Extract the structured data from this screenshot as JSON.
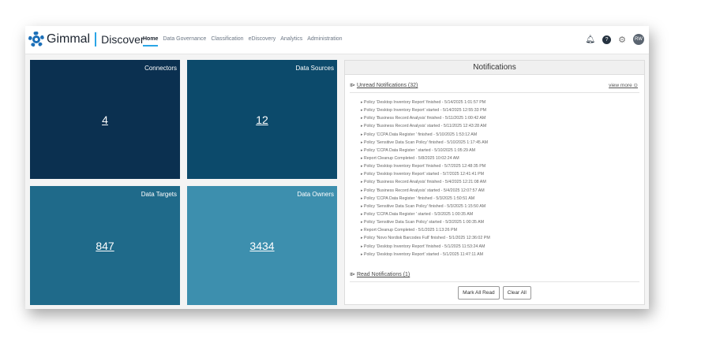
{
  "header": {
    "brand": "Gimmal",
    "product": "Discover",
    "nav": [
      "Home",
      "Data Governance",
      "Classification",
      "eDiscovery",
      "Analytics",
      "Administration"
    ],
    "user_initials": "RW"
  },
  "tiles": [
    {
      "title": "Connectors",
      "value": "4",
      "color": "#0b3050"
    },
    {
      "title": "Data Sources",
      "value": "12",
      "color": "#0c4a6b"
    },
    {
      "title": "Data Targets",
      "value": "847",
      "color": "#1f6a8a"
    },
    {
      "title": "Data Owners",
      "value": "3434",
      "color": "#3d8fae"
    }
  ],
  "notifications": {
    "title": "Notifications",
    "unread_label": "Unread Notifications (32)",
    "view_more": "view more",
    "read_label": "Read Notifications (1)",
    "items": [
      "Policy 'Desktop Inventory Report' finished - 5/14/2025 1:01:57 PM",
      "Policy 'Desktop Inventory Report' started - 5/14/2025 12:55:33 PM",
      "Policy 'Business Record Analysis' finished - 5/11/2025 1:00:42 AM",
      "Policy 'Business Record Analysis' started - 5/11/2025 12:43:28 AM",
      "Policy 'CCPA Data Register ' finished - 5/10/2025 1:53:12 AM",
      "Policy 'Sensitive Data Scan Policy' finished - 5/10/2025 1:17:45 AM",
      "Policy 'CCPA Data Register ' started - 5/10/2025 1:05:29 AM",
      "Report Cleanup Completed - 5/8/2025 10:02:24 AM",
      "Policy 'Desktop Inventory Report' finished - 5/7/2025 12:48:35 PM",
      "Policy 'Desktop Inventory Report' started - 5/7/2025 12:41:41 PM",
      "Policy 'Business Record Analysis' finished - 5/4/2025 12:21:08 AM",
      "Policy 'Business Record Analysis' started - 5/4/2025 12:07:57 AM",
      "Policy 'CCPA Data Register ' finished - 5/3/2025 1:50:51 AM",
      "Policy 'Sensitive Data Scan Policy' finished - 5/3/2025 1:15:50 AM",
      "Policy 'CCPA Data Register ' started - 5/3/2025 1:00:35 AM",
      "Policy 'Sensitive Data Scan Policy' started - 5/3/2025 1:00:35 AM",
      "Report Cleanup Completed - 5/1/2025 1:13:26 PM",
      "Policy 'Novo Nordisk Barcodes Full' finished - 5/1/2025 12:36:02 PM",
      "Policy 'Desktop Inventory Report' finished - 5/1/2025 11:53:24 AM",
      "Policy 'Desktop Inventory Report' started - 5/1/2025 11:47:11 AM"
    ],
    "mark_all_read": "Mark All Read",
    "clear_all": "Clear All"
  }
}
